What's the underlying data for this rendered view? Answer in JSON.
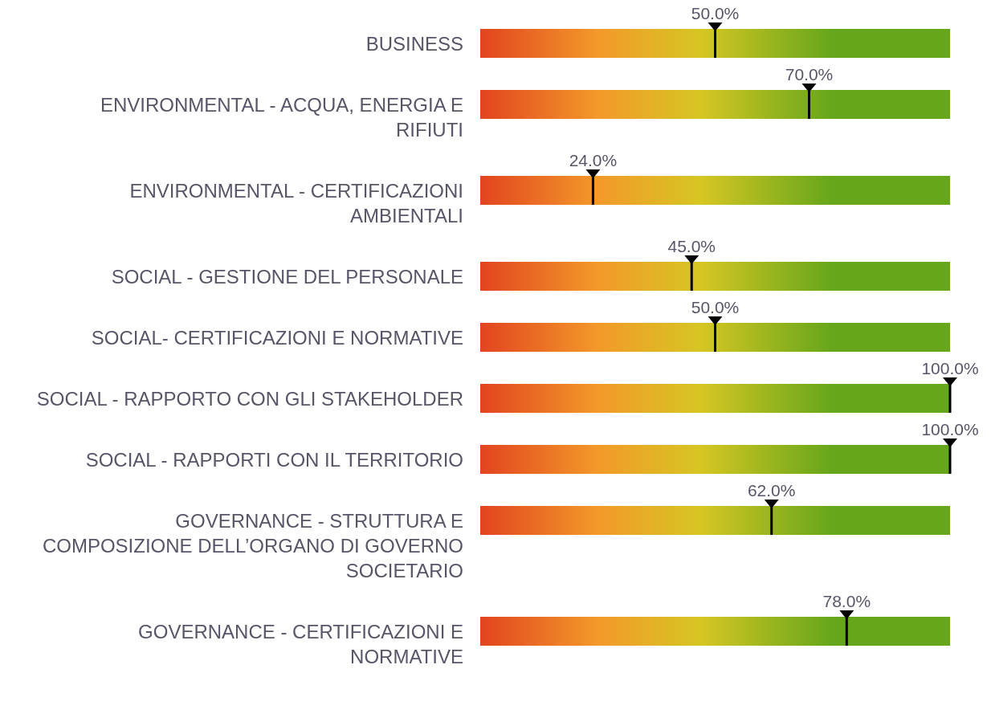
{
  "chart_data": {
    "type": "other",
    "categories": [
      "BUSINESS",
      "ENVIRONMENTAL - ACQUA, ENERGIA E RIFIUTI",
      "ENVIRONMENTAL - CERTIFICAZIONI AMBIENTALI",
      "SOCIAL - GESTIONE DEL PERSONALE",
      "SOCIAL- CERTIFICAZIONI E NORMATIVE",
      "SOCIAL - RAPPORTO CON GLI STAKEHOLDER",
      "SOCIAL - RAPPORTI CON IL TERRITORIO",
      "GOVERNANCE - STRUTTURA E COMPOSIZIONE DELL’ORGANO DI GOVERNO SOCIETARIO",
      "GOVERNANCE - CERTIFICAZIONI E NORMATIVE"
    ],
    "values": [
      50,
      70,
      24,
      45,
      50,
      100,
      100,
      62,
      78
    ],
    "value_labels": [
      "50.0%",
      "70.0%",
      "24.0%",
      "45.0%",
      "50.0%",
      "100.0%",
      "100.0%",
      "62.0%",
      "78.0%"
    ]
  }
}
